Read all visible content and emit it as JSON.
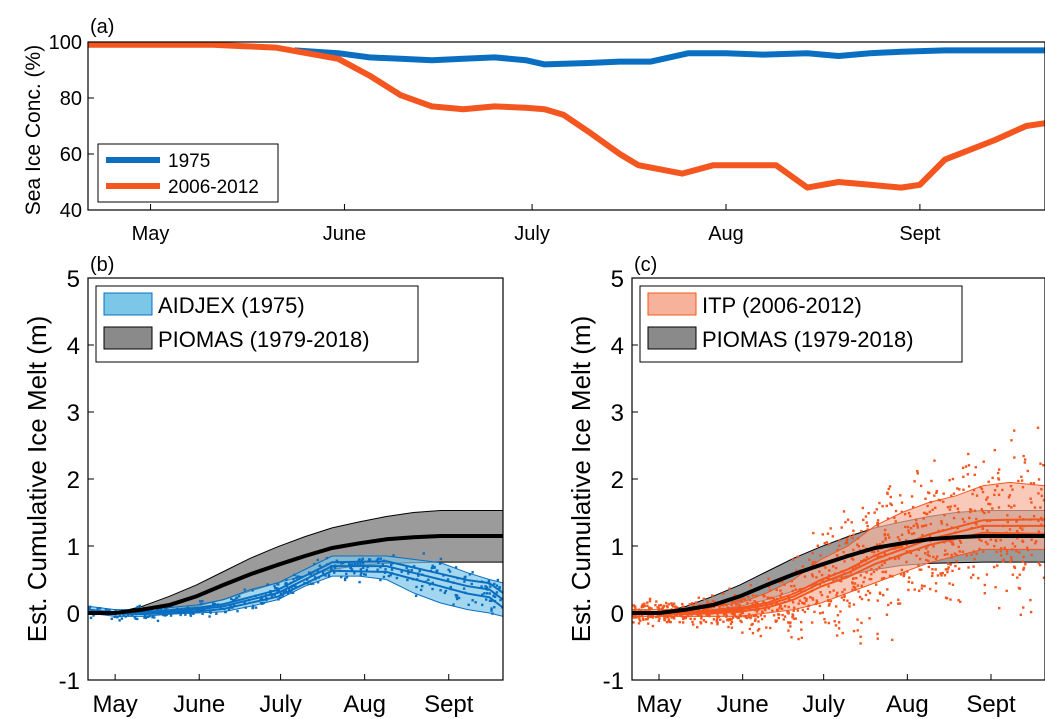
{
  "colors": {
    "blue": "#0b6fc1",
    "orange": "#f4561f",
    "blue_fill": "#7cc6e8",
    "orange_fill": "#f7b29c",
    "gray_fill": "#8a8a8a",
    "black": "#000000"
  },
  "chart_data": [
    {
      "panel": "(a)",
      "type": "line",
      "ylabel": "Sea Ice Conc. (%)",
      "ylim": [
        40,
        100
      ],
      "yticks": [
        "40",
        "60",
        "80",
        "100"
      ],
      "x_unit": "day of year",
      "xlim": [
        110,
        263
      ],
      "xticks": [
        {
          "label": "May",
          "x": 120
        },
        {
          "label": "June",
          "x": 151
        },
        {
          "label": "July",
          "x": 181
        },
        {
          "label": "Aug",
          "x": 212
        },
        {
          "label": "Sept",
          "x": 243
        }
      ],
      "legend": "bottom-left",
      "series": [
        {
          "name": "1975",
          "color_key": "blue",
          "x": [
            143,
            150,
            155,
            160,
            165,
            170,
            175,
            180,
            183,
            190,
            195,
            200,
            206,
            212,
            218,
            225,
            230,
            235,
            240,
            247,
            255,
            263
          ],
          "y": [
            97,
            96,
            94.5,
            94,
            93.5,
            94,
            94.5,
            93.5,
            92,
            92.5,
            93,
            93,
            96,
            96,
            95.5,
            96,
            95,
            96,
            96.5,
            97,
            97,
            97
          ]
        },
        {
          "name": "2006-2012",
          "color_key": "orange",
          "x": [
            110,
            120,
            125,
            130,
            135,
            140,
            145,
            150,
            155,
            160,
            165,
            170,
            175,
            180,
            183,
            186,
            190,
            195,
            198,
            205,
            210,
            215,
            220,
            225,
            230,
            235,
            240,
            243,
            247,
            255,
            260,
            263
          ],
          "y": [
            99,
            99,
            99,
            99,
            98.5,
            98,
            96,
            94,
            88,
            81,
            77,
            76,
            77,
            76.5,
            76,
            74,
            68,
            60,
            56,
            53,
            56,
            56,
            56,
            48,
            50,
            49,
            48,
            49,
            58,
            65,
            70,
            71
          ]
        }
      ]
    },
    {
      "panel": "(b)",
      "type": "area",
      "ylabel": "Est. Cumulative Ice Melt (m)",
      "ylim": [
        -1,
        5
      ],
      "yticks": [
        "-1",
        "0",
        "1",
        "2",
        "3",
        "4",
        "5"
      ],
      "x_unit": "day of year",
      "xlim": [
        110,
        263
      ],
      "xticks": [
        {
          "label": "May",
          "x": 120
        },
        {
          "label": "June",
          "x": 151
        },
        {
          "label": "July",
          "x": 181
        },
        {
          "label": "Aug",
          "x": 212
        },
        {
          "label": "Sept",
          "x": 243
        }
      ],
      "legend": "top-left",
      "series": [
        {
          "name": "AIDJEX (1975)",
          "color_key": "blue",
          "fill_key": "blue_fill",
          "x": [
            110,
            120,
            130,
            140,
            150,
            160,
            170,
            180,
            190,
            200,
            210,
            220,
            230,
            240,
            250,
            258,
            263
          ],
          "mean": [
            0.05,
            0,
            0,
            0.02,
            0.05,
            0.1,
            0.2,
            0.3,
            0.5,
            0.7,
            0.7,
            0.7,
            0.6,
            0.5,
            0.4,
            0.35,
            0.2
          ],
          "lower": [
            0,
            -0.05,
            -0.05,
            -0.02,
            0,
            0.02,
            0.1,
            0.2,
            0.4,
            0.55,
            0.55,
            0.5,
            0.3,
            0.15,
            0.05,
            0.0,
            -0.05
          ],
          "upper": [
            0.1,
            0.05,
            0.05,
            0.08,
            0.12,
            0.2,
            0.35,
            0.45,
            0.65,
            0.85,
            0.85,
            0.85,
            0.8,
            0.75,
            0.6,
            0.5,
            0.45
          ]
        },
        {
          "name": "PIOMAS (1979-2018)",
          "color_key": "black",
          "fill_key": "gray_fill",
          "x": [
            110,
            120,
            130,
            140,
            150,
            160,
            170,
            180,
            190,
            200,
            210,
            220,
            230,
            240,
            250,
            263
          ],
          "mean": [
            0,
            0,
            0.05,
            0.12,
            0.25,
            0.42,
            0.58,
            0.72,
            0.85,
            0.97,
            1.04,
            1.1,
            1.13,
            1.15,
            1.15,
            1.15
          ],
          "lower": [
            0,
            0,
            0.01,
            0.05,
            0.1,
            0.2,
            0.33,
            0.45,
            0.56,
            0.65,
            0.71,
            0.74,
            0.75,
            0.76,
            0.76,
            0.76
          ],
          "upper": [
            0,
            0,
            0.1,
            0.25,
            0.42,
            0.62,
            0.82,
            0.99,
            1.14,
            1.27,
            1.36,
            1.44,
            1.5,
            1.53,
            1.53,
            1.53
          ]
        }
      ]
    },
    {
      "panel": "(c)",
      "type": "area",
      "ylabel": "Est. Cumulative Ice Melt (m)",
      "ylim": [
        -1,
        5
      ],
      "yticks": [
        "-1",
        "0",
        "1",
        "2",
        "3",
        "4",
        "5"
      ],
      "x_unit": "day of year",
      "xlim": [
        110,
        263
      ],
      "xticks": [
        {
          "label": "May",
          "x": 120
        },
        {
          "label": "June",
          "x": 151
        },
        {
          "label": "July",
          "x": 181
        },
        {
          "label": "Aug",
          "x": 212
        },
        {
          "label": "Sept",
          "x": 243
        }
      ],
      "legend": "top-left",
      "series": [
        {
          "name": "ITP (2006-2012)",
          "color_key": "orange",
          "fill_key": "orange_fill",
          "x": [
            110,
            120,
            130,
            140,
            150,
            160,
            170,
            180,
            190,
            200,
            210,
            220,
            230,
            240,
            250,
            263
          ],
          "mean": [
            0,
            0,
            0,
            0.02,
            0.05,
            0.12,
            0.25,
            0.45,
            0.6,
            0.8,
            0.95,
            1.1,
            1.2,
            1.3,
            1.3,
            1.3
          ],
          "lower": [
            -0.05,
            -0.05,
            -0.05,
            -0.05,
            -0.05,
            0,
            0.05,
            0.15,
            0.3,
            0.45,
            0.6,
            0.75,
            0.85,
            0.95,
            0.95,
            0.95
          ],
          "upper": [
            0.05,
            0.05,
            0.05,
            0.1,
            0.15,
            0.3,
            0.5,
            0.8,
            1.0,
            1.3,
            1.5,
            1.65,
            1.75,
            1.9,
            1.95,
            1.9
          ]
        },
        {
          "name": "PIOMAS (1979-2018)",
          "color_key": "black",
          "fill_key": "gray_fill",
          "x": [
            110,
            120,
            130,
            140,
            150,
            160,
            170,
            180,
            190,
            200,
            210,
            220,
            230,
            240,
            250,
            263
          ],
          "mean": [
            0,
            0,
            0.05,
            0.12,
            0.25,
            0.42,
            0.58,
            0.72,
            0.85,
            0.97,
            1.04,
            1.1,
            1.13,
            1.15,
            1.15,
            1.15
          ],
          "lower": [
            0,
            0,
            0.01,
            0.05,
            0.1,
            0.2,
            0.33,
            0.45,
            0.56,
            0.65,
            0.71,
            0.74,
            0.75,
            0.76,
            0.76,
            0.76
          ],
          "upper": [
            0,
            0,
            0.1,
            0.25,
            0.42,
            0.62,
            0.82,
            0.99,
            1.14,
            1.27,
            1.36,
            1.44,
            1.5,
            1.53,
            1.53,
            1.53
          ]
        }
      ]
    }
  ]
}
